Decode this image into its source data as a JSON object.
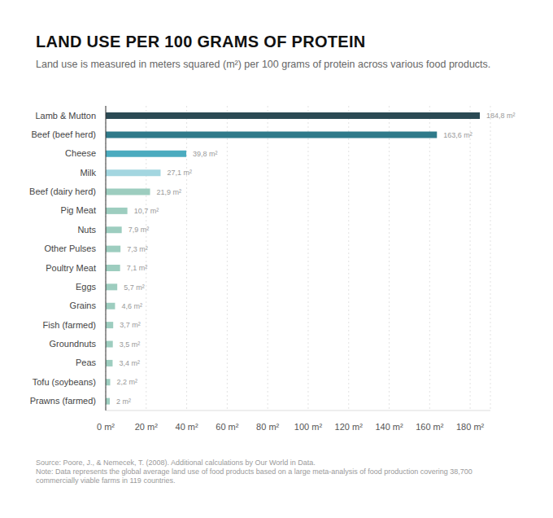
{
  "chart_data": {
    "type": "bar",
    "orientation": "horizontal",
    "title": "LAND USE PER 100 GRAMS OF PROTEIN",
    "subtitle": "Land use is measured in meters squared (m²) per 100 grams of protein across various food products.",
    "source": "Source: Poore, J., & Nemecek, T. (2008). Additional calculations by Our World in Data.",
    "note": "Note: Data represents the global average land use of food products based on a large meta-analysis of food production covering 38,700 commercially viable farms in 119 countries.",
    "categories": [
      "Lamb & Mutton",
      "Beef (beef herd)",
      "Cheese",
      "Milk",
      "Beef (dairy herd)",
      "Pig Meat",
      "Nuts",
      "Other Pulses",
      "Poultry Meat",
      "Eggs",
      "Grains",
      "Fish (farmed)",
      "Groundnuts",
      "Peas",
      "Tofu (soybeans)",
      "Prawns (farmed)"
    ],
    "values": [
      184.8,
      163.6,
      39.8,
      27.1,
      21.9,
      10.7,
      7.9,
      7.3,
      7.1,
      5.7,
      4.6,
      3.7,
      3.5,
      3.4,
      2.2,
      2
    ],
    "value_labels": [
      "184,8 m²",
      "163,6 m²",
      "39,8 m²",
      "27,1 m²",
      "21,9 m²",
      "10,7 m²",
      "7,9 m²",
      "7,3 m²",
      "7,1 m²",
      "5,7 m²",
      "4,6 m²",
      "3,7 m²",
      "3,5 m²",
      "3,4 m²",
      "2,2 m²",
      "2 m²"
    ],
    "colors": [
      "#2b4a54",
      "#2f7a8a",
      "#4babbf",
      "#a3d6e0",
      "#9dcdbf",
      "#9dcdbf",
      "#9dcdbf",
      "#9dcdbf",
      "#9dcdbf",
      "#9dcdbf",
      "#9dcdbf",
      "#9dcdbf",
      "#9dcdbf",
      "#9dcdbf",
      "#9dcdbf",
      "#9dcdbf"
    ],
    "xlim": [
      0,
      190
    ],
    "xticks": [
      {
        "value": 0,
        "label": "0 m²"
      },
      {
        "value": 20,
        "label": "20 m²"
      },
      {
        "value": 40,
        "label": "40 m²"
      },
      {
        "value": 60,
        "label": "60 m²"
      },
      {
        "value": 80,
        "label": "80 m²"
      },
      {
        "value": 100,
        "label": "100 m²"
      },
      {
        "value": 120,
        "label": "120 m²"
      },
      {
        "value": 140,
        "label": "140 m²"
      },
      {
        "value": 160,
        "label": "160 m²"
      },
      {
        "value": 180,
        "label": "180 m²"
      }
    ],
    "grid": true,
    "data_labels": true
  }
}
